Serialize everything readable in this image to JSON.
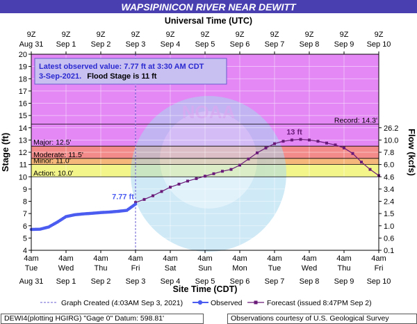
{
  "title": "WAPSIPINICON RIVER NEAR DEWITT",
  "top_axis_title": "Universal Time (UTC)",
  "top_ticks": [
    {
      "l1": "9Z",
      "l2": "Aug 31"
    },
    {
      "l1": "9Z",
      "l2": "Sep 1"
    },
    {
      "l1": "9Z",
      "l2": "Sep 2"
    },
    {
      "l1": "9Z",
      "l2": "Sep 3"
    },
    {
      "l1": "9Z",
      "l2": "Sep 4"
    },
    {
      "l1": "9Z",
      "l2": "Sep 5"
    },
    {
      "l1": "9Z",
      "l2": "Sep 6"
    },
    {
      "l1": "9Z",
      "l2": "Sep 7"
    },
    {
      "l1": "9Z",
      "l2": "Sep 8"
    },
    {
      "l1": "9Z",
      "l2": "Sep 9"
    },
    {
      "l1": "9Z",
      "l2": "Sep 10"
    }
  ],
  "bottom_ticks": [
    {
      "l1": "4am",
      "l2": "Tue",
      "l3": "Aug 31"
    },
    {
      "l1": "4am",
      "l2": "Wed",
      "l3": "Sep 1"
    },
    {
      "l1": "4am",
      "l2": "Thu",
      "l3": "Sep 2"
    },
    {
      "l1": "4am",
      "l2": "Fri",
      "l3": "Sep 3"
    },
    {
      "l1": "4am",
      "l2": "Sat",
      "l3": "Sep 4"
    },
    {
      "l1": "4am",
      "l2": "Sun",
      "l3": "Sep 5"
    },
    {
      "l1": "4am",
      "l2": "Mon",
      "l3": "Sep 6"
    },
    {
      "l1": "4am",
      "l2": "Tue",
      "l3": "Sep 7"
    },
    {
      "l1": "4am",
      "l2": "Wed",
      "l3": "Sep 8"
    },
    {
      "l1": "4am",
      "l2": "Thu",
      "l3": "Sep 9"
    },
    {
      "l1": "4am",
      "l2": "Fri",
      "l3": "Sep 10"
    }
  ],
  "bottom_axis_title": "Site Time (CDT)",
  "left_axis_title": "Stage (ft)",
  "right_axis_title": "Flow (kcfs)",
  "info_box": {
    "line1": "Latest observed value: 7.77 ft at 3:30 AM CDT",
    "line2_date": "3-Sep-2021.",
    "line2_flood": "Flood Stage is 11 ft"
  },
  "legend": {
    "created": "Graph Created (4:03AM Sep 3, 2021)",
    "observed": "Observed",
    "forecast": "Forecast (issued 8:47PM Sep 2)"
  },
  "footer": {
    "left": "DEWI4(plotting HGIRG) \"Gage 0\" Datum: 598.81'",
    "right": "Observations courtesy of U.S. Geological Survey"
  },
  "colors": {
    "major": "#e388f5",
    "moderate": "#f48b8b",
    "minor": "#f5b87a",
    "action": "#f3f58b",
    "observed": "#4b5cf0",
    "forecast": "#6a1a78",
    "title_bg": "#4a3fb0"
  },
  "chart_data": {
    "type": "line",
    "ylim": [
      4,
      20
    ],
    "y_ticks": [
      4,
      5,
      6,
      7,
      8,
      9,
      10,
      11,
      12,
      13,
      14,
      15,
      16,
      17,
      18,
      19,
      20
    ],
    "flow_ticks": [
      {
        "stage": 4,
        "label": "0.1"
      },
      {
        "stage": 5,
        "label": "0.6"
      },
      {
        "stage": 6,
        "label": "1.0"
      },
      {
        "stage": 7,
        "label": "1.5"
      },
      {
        "stage": 8,
        "label": "2.4"
      },
      {
        "stage": 9,
        "label": "3.4"
      },
      {
        "stage": 10,
        "label": "4.6"
      },
      {
        "stage": 11,
        "label": "6.0"
      },
      {
        "stage": 12,
        "label": "7.8"
      },
      {
        "stage": 13,
        "label": "10.0"
      },
      {
        "stage": 14,
        "label": "26.2"
      }
    ],
    "thresholds": [
      {
        "name": "Record",
        "value": 14.3,
        "label": "Record: 14.3'"
      },
      {
        "name": "Major",
        "value": 12.5,
        "label": "Major: 12.5'"
      },
      {
        "name": "Moderate",
        "value": 11.5,
        "label": "Moderate: 11.5'"
      },
      {
        "name": "Minor",
        "value": 11.0,
        "label": "Minor: 11.0'"
      },
      {
        "name": "Action",
        "value": 10.0,
        "label": "Action: 10.0'"
      }
    ],
    "created_day": 3.0,
    "observed_label": "7.77 ft",
    "forecast_peak_label": "13 ft",
    "observed": [
      [
        0.0,
        5.7
      ],
      [
        0.25,
        5.72
      ],
      [
        0.5,
        5.9
      ],
      [
        0.75,
        6.3
      ],
      [
        1.0,
        6.75
      ],
      [
        1.25,
        6.9
      ],
      [
        1.5,
        6.97
      ],
      [
        1.75,
        7.02
      ],
      [
        2.0,
        7.08
      ],
      [
        2.25,
        7.12
      ],
      [
        2.5,
        7.18
      ],
      [
        2.75,
        7.26
      ],
      [
        3.0,
        7.77
      ]
    ],
    "forecast": [
      [
        3.0,
        7.9
      ],
      [
        3.25,
        8.15
      ],
      [
        3.5,
        8.45
      ],
      [
        3.75,
        8.8
      ],
      [
        4.0,
        9.15
      ],
      [
        4.25,
        9.4
      ],
      [
        4.5,
        9.65
      ],
      [
        4.75,
        9.85
      ],
      [
        5.0,
        10.05
      ],
      [
        5.25,
        10.25
      ],
      [
        5.5,
        10.45
      ],
      [
        5.75,
        10.6
      ],
      [
        6.0,
        10.95
      ],
      [
        6.25,
        11.45
      ],
      [
        6.5,
        11.95
      ],
      [
        6.75,
        12.35
      ],
      [
        7.0,
        12.7
      ],
      [
        7.25,
        12.9
      ],
      [
        7.5,
        13.0
      ],
      [
        7.75,
        13.05
      ],
      [
        8.0,
        13.0
      ],
      [
        8.25,
        12.9
      ],
      [
        8.5,
        12.75
      ],
      [
        8.75,
        12.6
      ],
      [
        9.0,
        12.35
      ],
      [
        9.25,
        11.9
      ],
      [
        9.5,
        11.2
      ],
      [
        9.75,
        10.6
      ],
      [
        10.0,
        10.1
      ]
    ]
  }
}
